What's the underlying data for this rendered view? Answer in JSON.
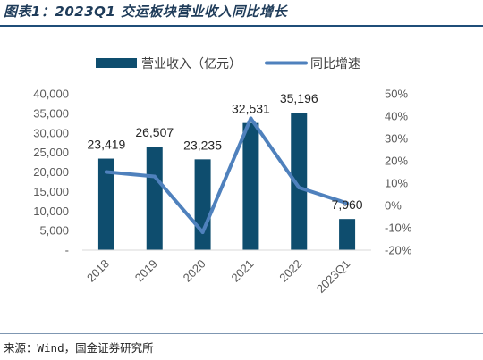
{
  "page": {
    "title": "图表1：2023Q1 交运板块营业收入同比增长",
    "source": "来源：Wind，国金证券研究所"
  },
  "colors": {
    "bar": "#0e4d6e",
    "line": "#4f81bd",
    "title_rule": "#1f4e79"
  },
  "chart_data": {
    "type": "bar",
    "categories": [
      "2018",
      "2019",
      "2020",
      "2021",
      "2022",
      "2023Q1"
    ],
    "series": [
      {
        "name": "营业收入（亿元）",
        "type": "bar",
        "axis": "left",
        "values": [
          23419,
          26507,
          23235,
          32531,
          35196,
          7960
        ],
        "labels": [
          "23,419",
          "26,507",
          "23,235",
          "32,531",
          "35,196",
          "7,960"
        ]
      },
      {
        "name": "同比增速",
        "type": "line",
        "axis": "right",
        "values": [
          0.15,
          0.13,
          -0.12,
          0.39,
          0.08,
          0.01
        ]
      }
    ],
    "y_left": {
      "ylim": [
        0,
        40000
      ],
      "ticks": [
        0,
        5000,
        10000,
        15000,
        20000,
        25000,
        30000,
        35000,
        40000
      ],
      "tick_labels": [
        "-",
        "5,000",
        "10,000",
        "15,000",
        "20,000",
        "25,000",
        "30,000",
        "35,000",
        "40,000"
      ]
    },
    "y_right": {
      "ylim": [
        -0.2,
        0.5
      ],
      "ticks": [
        -0.2,
        -0.1,
        0,
        0.1,
        0.2,
        0.3,
        0.4,
        0.5
      ],
      "tick_labels": [
        "-20%",
        "-10%",
        "0%",
        "10%",
        "20%",
        "30%",
        "40%",
        "50%"
      ]
    },
    "legend_position": "top-center",
    "grid": false
  }
}
